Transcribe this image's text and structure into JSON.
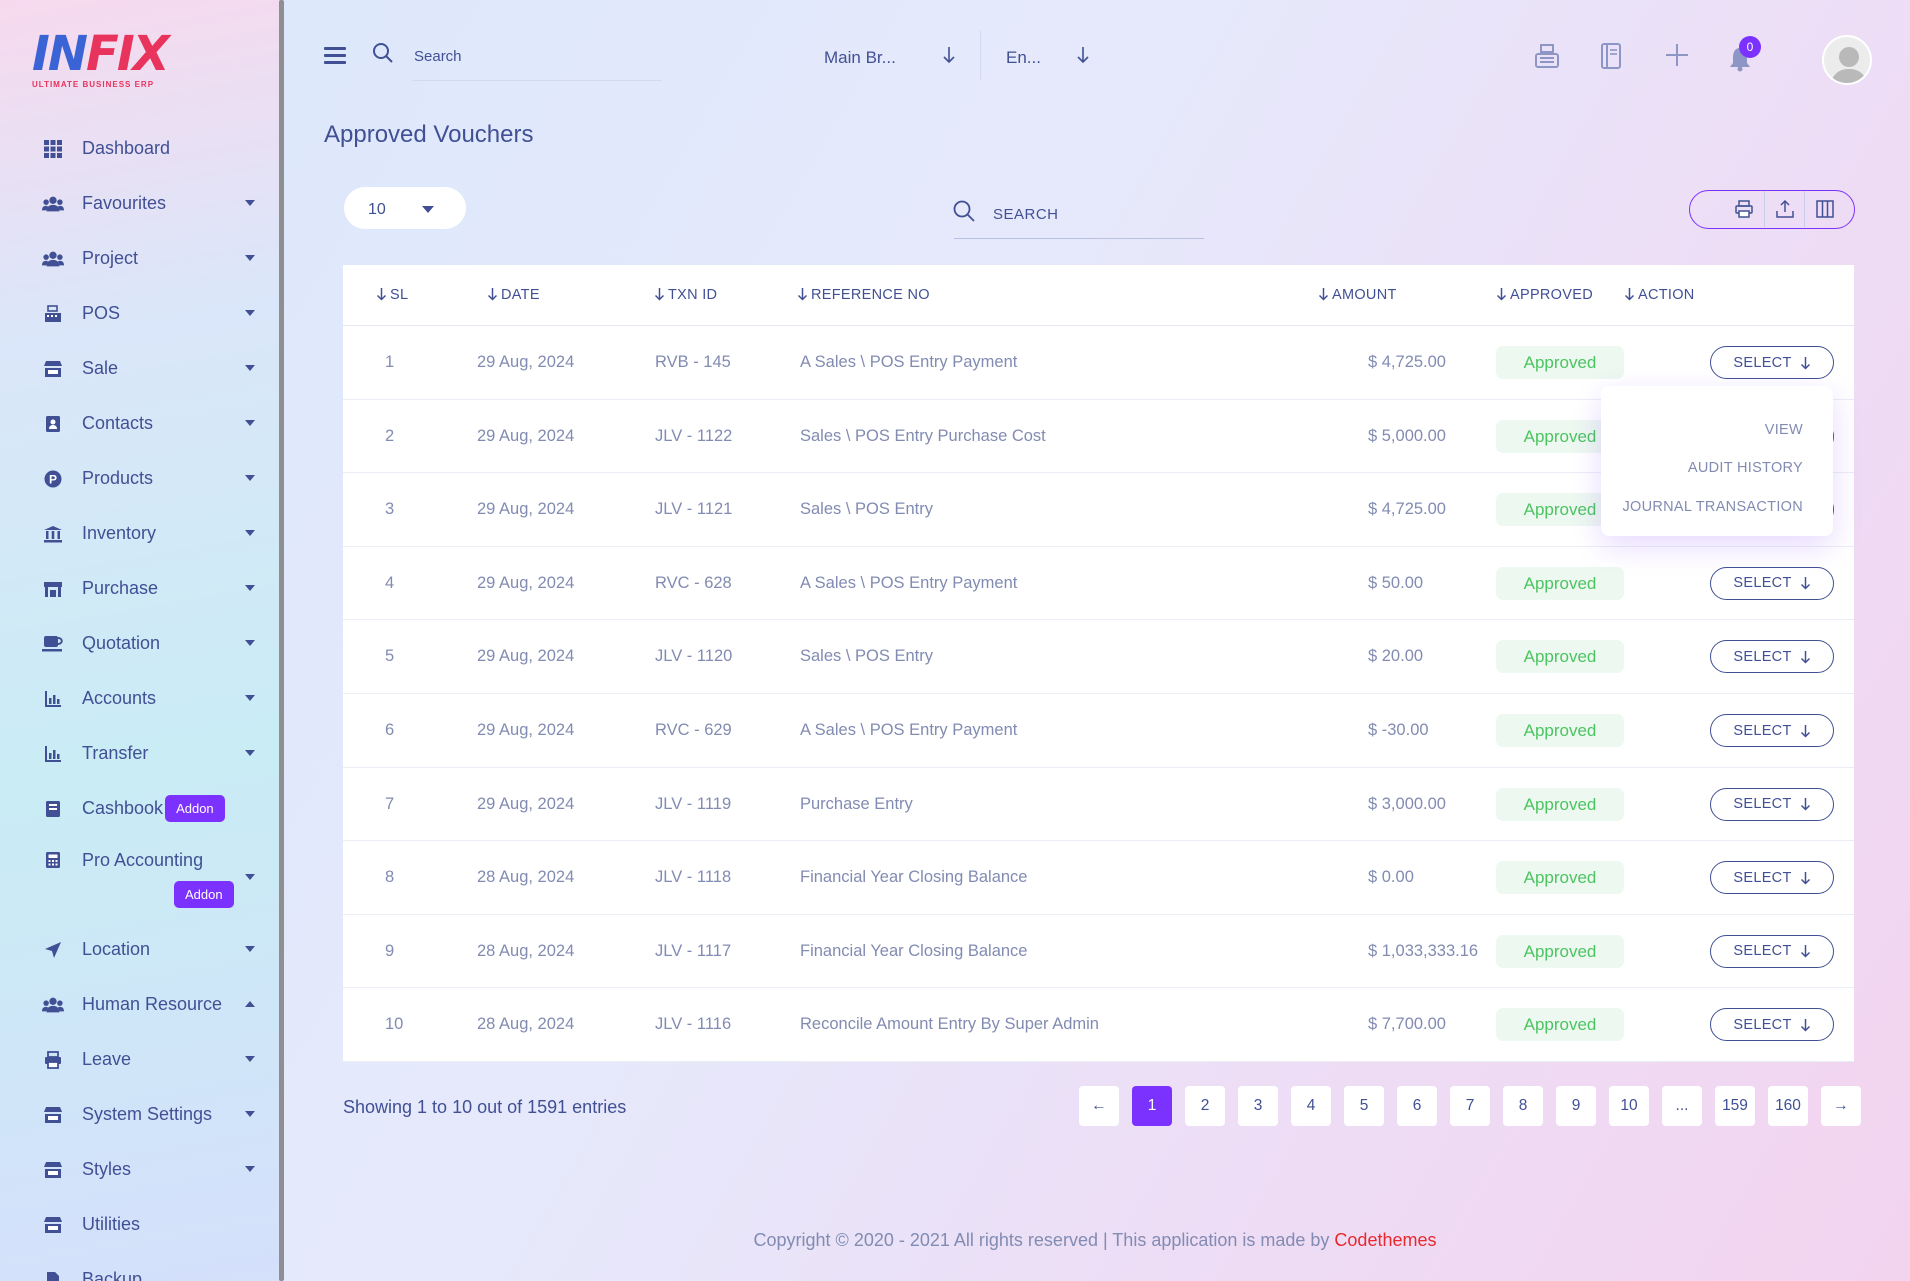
{
  "brand": {
    "logo_part1": "IN",
    "logo_part2": "FIX",
    "tagline": "ULTIMATE BUSINESS ERP"
  },
  "sidebar": {
    "items": [
      {
        "label": "Dashboard",
        "icon": "grid-icon",
        "caret": "none"
      },
      {
        "label": "Favourites",
        "icon": "users-icon",
        "caret": "down"
      },
      {
        "label": "Project",
        "icon": "users-icon",
        "caret": "down"
      },
      {
        "label": "POS",
        "icon": "cash-register-icon",
        "caret": "down"
      },
      {
        "label": "Sale",
        "icon": "store-icon",
        "caret": "down"
      },
      {
        "label": "Contacts",
        "icon": "address-book-icon",
        "caret": "down"
      },
      {
        "label": "Products",
        "icon": "product-p-icon",
        "caret": "down"
      },
      {
        "label": "Inventory",
        "icon": "building-columns-icon",
        "caret": "down"
      },
      {
        "label": "Purchase",
        "icon": "shop-icon",
        "caret": "down"
      },
      {
        "label": "Quotation",
        "icon": "coffee-cup-icon",
        "caret": "down"
      },
      {
        "label": "Accounts",
        "icon": "bar-chart-icon",
        "caret": "down"
      },
      {
        "label": "Transfer",
        "icon": "bar-chart-icon",
        "caret": "down"
      },
      {
        "label": "Cashbook",
        "icon": "book-icon",
        "caret": "none",
        "badge": "Addon"
      },
      {
        "label": "Pro Accounting",
        "icon": "calculator-icon",
        "caret": "down",
        "badge": "Addon"
      },
      {
        "label": "Location",
        "icon": "location-arrow-icon",
        "caret": "down"
      },
      {
        "label": "Human Resource",
        "icon": "users-icon",
        "caret": "up"
      },
      {
        "label": "Leave",
        "icon": "printer-icon",
        "caret": "down"
      },
      {
        "label": "System Settings",
        "icon": "store-icon",
        "caret": "down"
      },
      {
        "label": "Styles",
        "icon": "store-icon",
        "caret": "down"
      },
      {
        "label": "Utilities",
        "icon": "store-icon",
        "caret": "none"
      },
      {
        "label": "Backup",
        "icon": "file-icon",
        "caret": "none"
      }
    ]
  },
  "header": {
    "search_label": "Search",
    "branch": "Main Br...",
    "language": "En...",
    "notification_count": "0",
    "icons": [
      "cash-register-icon",
      "ledger-book-icon",
      "plus-icon",
      "bell-icon"
    ]
  },
  "page": {
    "title": "Approved Vouchers",
    "per_page": "10",
    "table_search": "SEARCH"
  },
  "table": {
    "columns": [
      "SL",
      "DATE",
      "TXN ID",
      "REFERENCE NO",
      "AMOUNT",
      "APPROVED",
      "ACTION"
    ],
    "rows": [
      {
        "sl": "1",
        "date": "29 Aug, 2024",
        "txn": "RVB - 145",
        "ref": "A Sales \\ POS Entry Payment",
        "amount": "$ 4,725.00",
        "status": "Approved",
        "action": "SELECT"
      },
      {
        "sl": "2",
        "date": "29 Aug, 2024",
        "txn": "JLV - 1122",
        "ref": "Sales \\ POS Entry Purchase Cost",
        "amount": "$ 5,000.00",
        "status": "Approved",
        "action": "SELECT"
      },
      {
        "sl": "3",
        "date": "29 Aug, 2024",
        "txn": "JLV - 1121",
        "ref": "Sales \\ POS Entry",
        "amount": "$ 4,725.00",
        "status": "Approved",
        "action": "SELECT"
      },
      {
        "sl": "4",
        "date": "29 Aug, 2024",
        "txn": "RVC - 628",
        "ref": "A Sales \\ POS Entry Payment",
        "amount": "$ 50.00",
        "status": "Approved",
        "action": "SELECT"
      },
      {
        "sl": "5",
        "date": "29 Aug, 2024",
        "txn": "JLV - 1120",
        "ref": "Sales \\ POS Entry",
        "amount": "$ 20.00",
        "status": "Approved",
        "action": "SELECT"
      },
      {
        "sl": "6",
        "date": "29 Aug, 2024",
        "txn": "RVC - 629",
        "ref": "A Sales \\ POS Entry Payment",
        "amount": "$ -30.00",
        "status": "Approved",
        "action": "SELECT"
      },
      {
        "sl": "7",
        "date": "29 Aug, 2024",
        "txn": "JLV - 1119",
        "ref": "Purchase Entry",
        "amount": "$ 3,000.00",
        "status": "Approved",
        "action": "SELECT"
      },
      {
        "sl": "8",
        "date": "28 Aug, 2024",
        "txn": "JLV - 1118",
        "ref": "Financial Year Closing Balance",
        "amount": "$ 0.00",
        "status": "Approved",
        "action": "SELECT"
      },
      {
        "sl": "9",
        "date": "28 Aug, 2024",
        "txn": "JLV - 1117",
        "ref": "Financial Year Closing Balance",
        "amount": "$ 1,033,333.16",
        "status": "Approved",
        "action": "SELECT"
      },
      {
        "sl": "10",
        "date": "28 Aug, 2024",
        "txn": "JLV - 1116",
        "ref": "Reconcile Amount Entry By Super Admin",
        "amount": "$ 7,700.00",
        "status": "Approved",
        "action": "SELECT"
      }
    ]
  },
  "action_menu": {
    "items": [
      "VIEW",
      "AUDIT HISTORY",
      "JOURNAL TRANSACTION"
    ]
  },
  "footer_info": {
    "showing": "Showing 1 to 10 out of 1591 entries",
    "pages": [
      "←",
      "1",
      "2",
      "3",
      "4",
      "5",
      "6",
      "7",
      "8",
      "9",
      "10",
      "...",
      "159",
      "160",
      "→"
    ],
    "active_page": "1",
    "copyright": "Copyright © 2020 - 2021 All rights reserved | This application is made by ",
    "brand": "Codethemes"
  },
  "colors": {
    "accent": "#7c32ff",
    "text": "#415094",
    "muted": "#828bb2",
    "approved": "#4cc461",
    "brand_red": "#e7292e"
  }
}
